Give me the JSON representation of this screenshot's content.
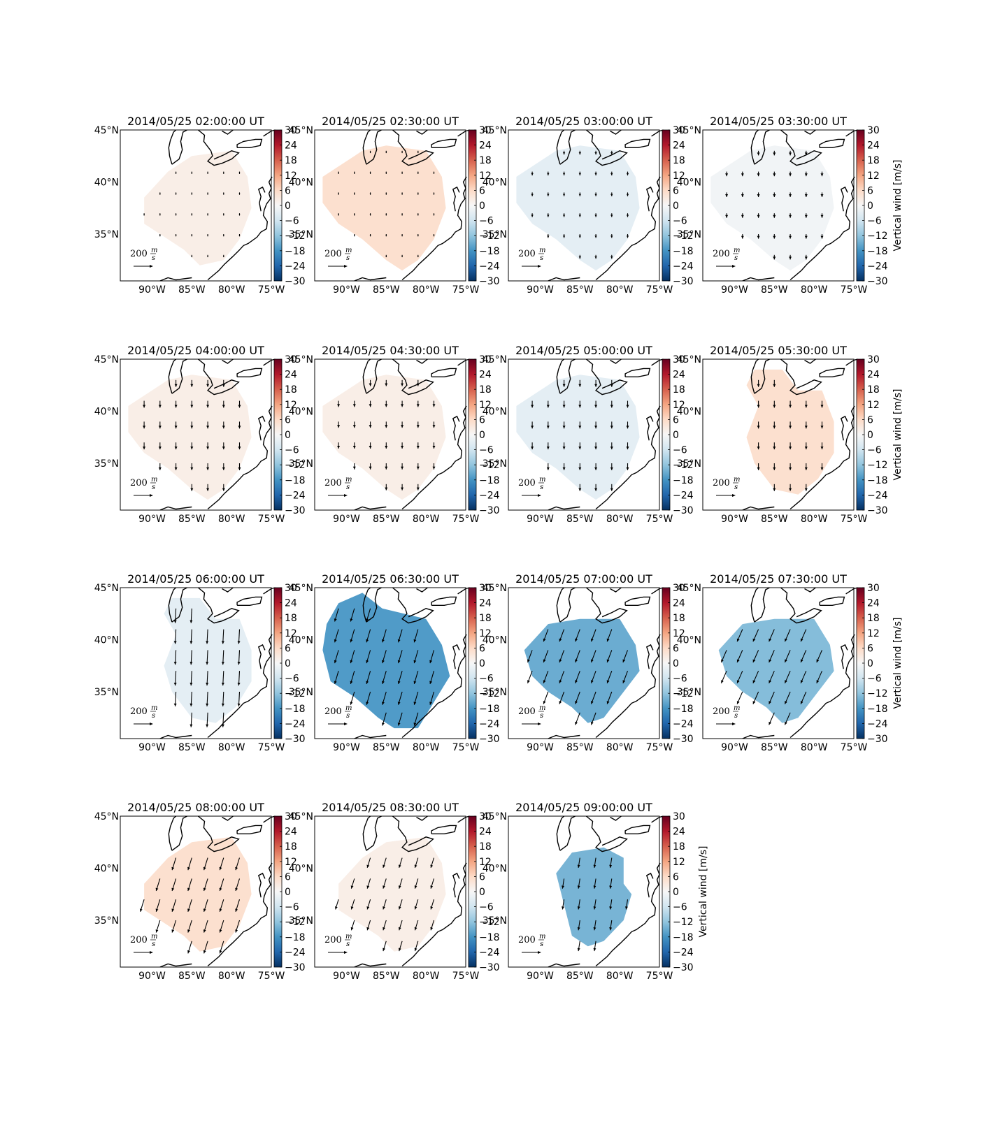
{
  "figure": {
    "colorbar_label": "Vertical wind [m/s]",
    "reference_vector": {
      "value": "200",
      "unit_num": "m",
      "unit_den": "s"
    },
    "lat_ticks": [
      "45°N",
      "40°N",
      "35°N"
    ],
    "lon_ticks": [
      "90°W",
      "85°W",
      "80°W",
      "75°W"
    ],
    "colorbar_ticks": [
      "30",
      "24",
      "18",
      "12",
      "6",
      "0",
      "−6",
      "−12",
      "−18",
      "−24",
      "−30"
    ]
  },
  "chart_data": [
    {
      "type": "heatmap",
      "title": "2014/05/25 02:00:00 UT",
      "time": "02:00",
      "vertical_wind": 2,
      "wind": {
        "u": 0,
        "v": -15
      },
      "colorbar_label": "",
      "colorbar": {
        "range": [
          -30,
          30
        ],
        "cmap": "RdBu_r"
      }
    },
    {
      "type": "heatmap",
      "title": "2014/05/25 02:30:00 UT",
      "time": "02:30",
      "vertical_wind": 5,
      "wind": {
        "u": 0,
        "v": -15
      },
      "colorbar_label": "",
      "colorbar": {
        "range": [
          -30,
          30
        ],
        "cmap": "RdBu_r"
      }
    },
    {
      "type": "heatmap",
      "title": "2014/05/25 03:00:00 UT",
      "time": "03:00",
      "vertical_wind": -3,
      "wind": {
        "u": 0,
        "v": -25
      },
      "colorbar_label": "",
      "colorbar": {
        "range": [
          -30,
          30
        ],
        "cmap": "RdBu_r"
      }
    },
    {
      "type": "heatmap",
      "title": "2014/05/25 03:30:00 UT",
      "time": "03:30",
      "vertical_wind": -1,
      "wind": {
        "u": 0,
        "v": -30
      },
      "colorbar_label": "Vertical wind [m/s]",
      "colorbar": {
        "range": [
          -30,
          30
        ],
        "cmap": "RdBu_r"
      }
    },
    {
      "type": "heatmap",
      "title": "2014/05/25 04:00:00 UT",
      "time": "04:00",
      "vertical_wind": 2,
      "wind": {
        "u": 0,
        "v": -45
      },
      "colorbar_label": "",
      "colorbar": {
        "range": [
          -30,
          30
        ],
        "cmap": "RdBu_r"
      }
    },
    {
      "type": "heatmap",
      "title": "2014/05/25 04:30:00 UT",
      "time": "04:30",
      "vertical_wind": 2,
      "wind": {
        "u": 0,
        "v": -40
      },
      "colorbar_label": "",
      "colorbar": {
        "range": [
          -30,
          30
        ],
        "cmap": "RdBu_r"
      }
    },
    {
      "type": "heatmap",
      "title": "2014/05/25 05:00:00 UT",
      "time": "05:00",
      "vertical_wind": -3,
      "wind": {
        "u": 0,
        "v": -45
      },
      "colorbar_label": "",
      "colorbar": {
        "range": [
          -30,
          30
        ],
        "cmap": "RdBu_r"
      }
    },
    {
      "type": "heatmap",
      "title": "2014/05/25 05:30:00 UT",
      "time": "05:30",
      "vertical_wind": 5,
      "wind": {
        "u": 0,
        "v": -45
      },
      "colorbar_label": "Vertical wind [m/s]",
      "colorbar": {
        "range": [
          -30,
          30
        ],
        "cmap": "RdBu_r"
      }
    },
    {
      "type": "heatmap",
      "title": "2014/05/25 06:00:00 UT",
      "time": "06:00",
      "vertical_wind": -3,
      "wind": {
        "u": -5,
        "v": -95
      },
      "colorbar_label": "",
      "colorbar": {
        "range": [
          -30,
          30
        ],
        "cmap": "RdBu_r"
      }
    },
    {
      "type": "heatmap",
      "title": "2014/05/25 06:30:00 UT",
      "time": "06:30",
      "vertical_wind": -17,
      "wind": {
        "u": -25,
        "v": -85
      },
      "colorbar_label": "",
      "colorbar": {
        "range": [
          -30,
          30
        ],
        "cmap": "RdBu_r"
      }
    },
    {
      "type": "heatmap",
      "title": "2014/05/25 07:00:00 UT",
      "time": "07:00",
      "vertical_wind": -15,
      "wind": {
        "u": -30,
        "v": -80
      },
      "colorbar_label": "",
      "colorbar": {
        "range": [
          -30,
          30
        ],
        "cmap": "RdBu_r"
      }
    },
    {
      "type": "heatmap",
      "title": "2014/05/25 07:30:00 UT",
      "time": "07:30",
      "vertical_wind": -13,
      "wind": {
        "u": -35,
        "v": -80
      },
      "colorbar_label": "Vertical wind [m/s]",
      "colorbar": {
        "range": [
          -30,
          30
        ],
        "cmap": "RdBu_r"
      }
    },
    {
      "type": "heatmap",
      "title": "2014/05/25 08:00:00 UT",
      "time": "08:00",
      "vertical_wind": 5,
      "wind": {
        "u": -25,
        "v": -80
      },
      "colorbar_label": "",
      "colorbar": {
        "range": [
          -30,
          30
        ],
        "cmap": "RdBu_r"
      }
    },
    {
      "type": "heatmap",
      "title": "2014/05/25 08:30:00 UT",
      "time": "08:30",
      "vertical_wind": 2,
      "wind": {
        "u": -20,
        "v": -65
      },
      "colorbar_label": "",
      "colorbar": {
        "range": [
          -30,
          30
        ],
        "cmap": "RdBu_r"
      }
    },
    {
      "type": "heatmap",
      "title": "2014/05/25 09:00:00 UT",
      "time": "09:00",
      "vertical_wind": -14,
      "wind": {
        "u": -10,
        "v": -65
      },
      "colorbar_label": "Vertical wind [m/s]",
      "colorbar": {
        "range": [
          -30,
          30
        ],
        "cmap": "RdBu_r"
      }
    }
  ]
}
